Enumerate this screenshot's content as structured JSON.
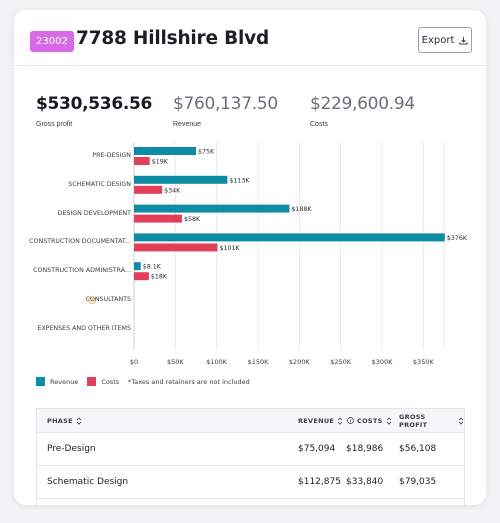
{
  "header": {
    "job_number": "23002",
    "title": "7788 Hillshire Blvd",
    "export_label": "Export"
  },
  "metrics": [
    {
      "value": "$530,536.56",
      "label": "Gross profit"
    },
    {
      "value": "$760,137.50",
      "label": "Revenue"
    },
    {
      "value": "$229,600.94",
      "label": "Costs"
    }
  ],
  "colors": {
    "revenue": "#0e8ca6",
    "costs": "#e2405a",
    "badge": "#d86ae8",
    "warning": "#e8a23a"
  },
  "chart_data": {
    "type": "bar",
    "orientation": "horizontal",
    "categories": [
      "PRE-DESIGN",
      "SCHEMATIC DESIGN",
      "DESIGN DEVELOPMENT",
      "CONSTRUCTION DOCUMENTAT...",
      "CONSTRUCTION ADMINISTRA...",
      "CONSULTANTS",
      "EXPENSES AND OTHER ITEMS"
    ],
    "series": [
      {
        "name": "Revenue",
        "values": [
          75000,
          113000,
          188000,
          376000,
          8100,
          null,
          null
        ],
        "labels": [
          "$75K",
          "$113K",
          "$188K",
          "$376K",
          "$8.1K",
          "",
          ""
        ]
      },
      {
        "name": "Costs",
        "values": [
          19000,
          34000,
          58000,
          101000,
          18000,
          null,
          null
        ],
        "labels": [
          "$19K",
          "$34K",
          "$58K",
          "$101K",
          "$18K",
          "",
          ""
        ]
      }
    ],
    "x_ticks": [
      "$0",
      "$50K",
      "$100K",
      "$150K",
      "$200K",
      "$250K",
      "$300K",
      "$350K"
    ],
    "xlim": [
      0,
      375000
    ],
    "grid": true,
    "legend_position": "bottom-left",
    "footnote": "*Taxes and retainers are not included",
    "warning_icon_category": "CONSULTANTS"
  },
  "table": {
    "headers": {
      "phase": "PHASE",
      "revenue": "REVENUE",
      "costs": "COSTS",
      "gross_profit": "GROSS PROFIT"
    },
    "rows": [
      {
        "phase": "Pre-Design",
        "revenue": "$75,094",
        "costs": "$18,986",
        "gross_profit": "$56,108"
      },
      {
        "phase": "Schematic Design",
        "revenue": "$112,875",
        "costs": "$33,840",
        "gross_profit": "$79,035"
      }
    ]
  }
}
